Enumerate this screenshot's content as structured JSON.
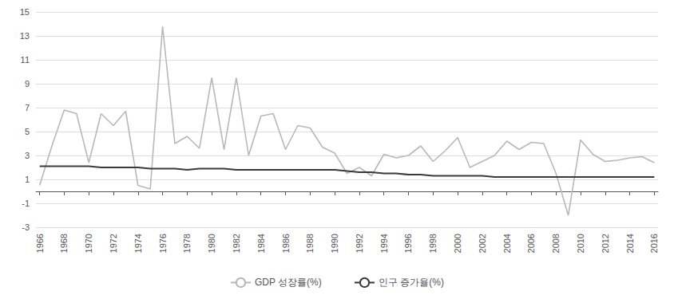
{
  "chart_data": {
    "type": "line",
    "x": [
      1966,
      1967,
      1968,
      1969,
      1970,
      1971,
      1972,
      1973,
      1974,
      1975,
      1976,
      1977,
      1978,
      1979,
      1980,
      1981,
      1982,
      1983,
      1984,
      1985,
      1986,
      1987,
      1988,
      1989,
      1990,
      1991,
      1992,
      1993,
      1994,
      1995,
      1996,
      1997,
      1998,
      1999,
      2000,
      2001,
      2002,
      2003,
      2004,
      2005,
      2006,
      2007,
      2008,
      2009,
      2010,
      2011,
      2012,
      2013,
      2014,
      2015,
      2016
    ],
    "series": [
      {
        "name": "GDP 성장률(%)",
        "color": "#b8b8b8",
        "values": [
          0.5,
          3.8,
          6.8,
          6.5,
          2.4,
          6.5,
          5.5,
          6.7,
          0.5,
          0.2,
          13.8,
          4.0,
          4.6,
          3.6,
          9.5,
          3.5,
          9.5,
          3.0,
          6.3,
          6.5,
          3.5,
          5.5,
          5.3,
          3.7,
          3.2,
          1.5,
          2.0,
          1.3,
          3.1,
          2.8,
          3.0,
          3.8,
          2.5,
          3.4,
          4.5,
          2.0,
          2.5,
          3.0,
          4.2,
          3.5,
          4.1,
          4.0,
          1.5,
          -2.0,
          4.3,
          3.1,
          2.5,
          2.6,
          2.8,
          2.9,
          2.4
        ]
      },
      {
        "name": "인구 증가율(%)",
        "color": "#3a3a3a",
        "values": [
          2.1,
          2.1,
          2.1,
          2.1,
          2.1,
          2.0,
          2.0,
          2.0,
          2.0,
          1.9,
          1.9,
          1.9,
          1.8,
          1.9,
          1.9,
          1.9,
          1.8,
          1.8,
          1.8,
          1.8,
          1.8,
          1.8,
          1.8,
          1.8,
          1.8,
          1.7,
          1.6,
          1.6,
          1.5,
          1.5,
          1.4,
          1.4,
          1.3,
          1.3,
          1.3,
          1.3,
          1.3,
          1.2,
          1.2,
          1.2,
          1.2,
          1.2,
          1.2,
          1.2,
          1.2,
          1.2,
          1.2,
          1.2,
          1.2,
          1.2,
          1.2
        ]
      }
    ],
    "xlim": [
      1965.7,
      2016.3
    ],
    "xticks": [
      1966,
      1968,
      1970,
      1972,
      1974,
      1976,
      1978,
      1980,
      1982,
      1984,
      1986,
      1988,
      1990,
      1992,
      1994,
      1996,
      1998,
      2000,
      2002,
      2004,
      2006,
      2008,
      2010,
      2012,
      2014,
      2016
    ],
    "ylim": [
      -3,
      15
    ],
    "yticks": [
      -3,
      -1,
      1,
      3,
      5,
      7,
      9,
      11,
      13,
      15
    ],
    "grid": true,
    "legend": "bottom"
  }
}
